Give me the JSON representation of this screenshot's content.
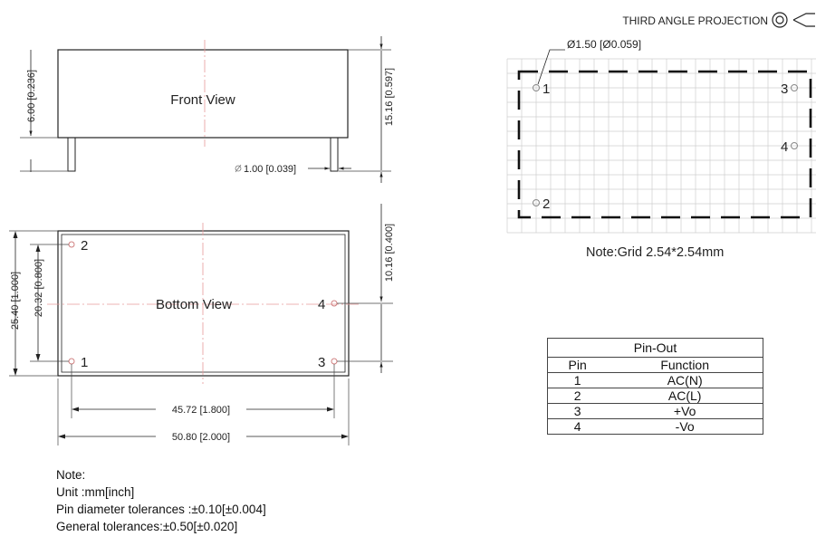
{
  "projection": {
    "label": "THIRD ANGLE PROJECTION",
    "symbol_icon": "third-angle-projection-icon"
  },
  "front_view": {
    "title": "Front View",
    "dim_body_height": "6.00 [0.236]",
    "dim_total_height": "15.16 [0.597]",
    "dim_pin_diameter": "1.00 [0.039]"
  },
  "bottom_view": {
    "title": "Bottom View",
    "dim_height": "25.40 [1.000]",
    "dim_pin_spacing_v": "20.32 [0.800]",
    "dim_pin4_offset": "10.16 [0.400]",
    "dim_pin_spacing_h": "45.72 [1.800]",
    "dim_width": "50.80 [2.000]",
    "pins": {
      "p1": "1",
      "p2": "2",
      "p3": "3",
      "p4": "4"
    }
  },
  "grid_view": {
    "hole_label": "Ø1.50 [Ø0.059]",
    "pins": {
      "p1": "1",
      "p2": "2",
      "p3": "3",
      "p4": "4"
    },
    "note": "Note:Grid 2.54*2.54mm"
  },
  "pinout_table": {
    "title": "Pin-Out",
    "headers": {
      "pin": "Pin",
      "function": "Function"
    },
    "rows": [
      {
        "pin": "1",
        "function": "AC(N)"
      },
      {
        "pin": "2",
        "function": "AC(L)"
      },
      {
        "pin": "3",
        "function": "+Vo"
      },
      {
        "pin": "4",
        "function": "-Vo"
      }
    ]
  },
  "notes": {
    "heading": "Note:",
    "unit": "Unit :mm[inch]",
    "pin_tolerance": "Pin diameter tolerances :±0.10[±0.004]",
    "general_tolerance": "General tolerances:±0.50[±0.020]"
  }
}
